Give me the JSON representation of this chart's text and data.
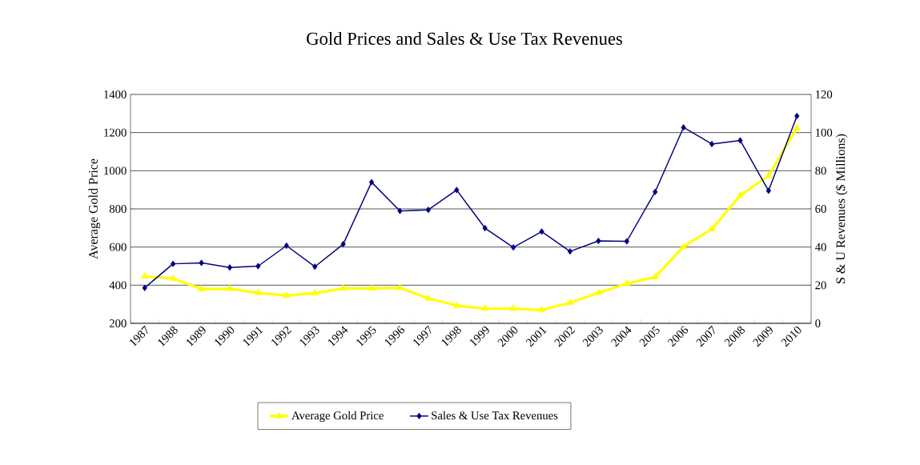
{
  "chart_data": {
    "type": "line",
    "title": "Gold Prices and Sales & Use Tax Revenues",
    "ylabel": "Average Gold Price",
    "y2label": "S & U Revenues ($ Millions)",
    "categories": [
      "1987",
      "1988",
      "1989",
      "1990",
      "1991",
      "1992",
      "1993",
      "1994",
      "1995",
      "1996",
      "1997",
      "1998",
      "1999",
      "2000",
      "2001",
      "2002",
      "2003",
      "2004",
      "2005",
      "2006",
      "2007",
      "2008",
      "2009",
      "2010"
    ],
    "series": [
      {
        "name": "Average Gold Price",
        "color": "#ffff00",
        "marker": "triangle",
        "values": [
          446,
          435,
          380,
          381,
          360,
          345,
          358,
          383,
          383,
          386,
          331,
          293,
          277,
          277,
          270,
          308,
          360,
          408,
          442,
          602,
          694,
          870,
          974,
          1224
        ]
      },
      {
        "name": "Sales & Use Tax Revenues",
        "color": "#000080",
        "marker": "diamond",
        "axis": "y2",
        "values": [
          18.6,
          31.2,
          31.7,
          29.3,
          30.0,
          40.7,
          29.7,
          41.5,
          74.0,
          58.9,
          59.5,
          69.9,
          49.9,
          39.8,
          48.1,
          37.7,
          43.2,
          43.0,
          68.9,
          102.7,
          94.0,
          95.9,
          69.5,
          108.7
        ]
      }
    ],
    "ylim": [
      200,
      1400
    ],
    "yticks": [
      200,
      400,
      600,
      800,
      1000,
      1200,
      1400
    ],
    "y2lim": [
      0,
      120
    ],
    "y2ticks": [
      0,
      20,
      40,
      60,
      80,
      100,
      120
    ],
    "grid": "y",
    "legend": "bottom",
    "line_style": "solid"
  }
}
